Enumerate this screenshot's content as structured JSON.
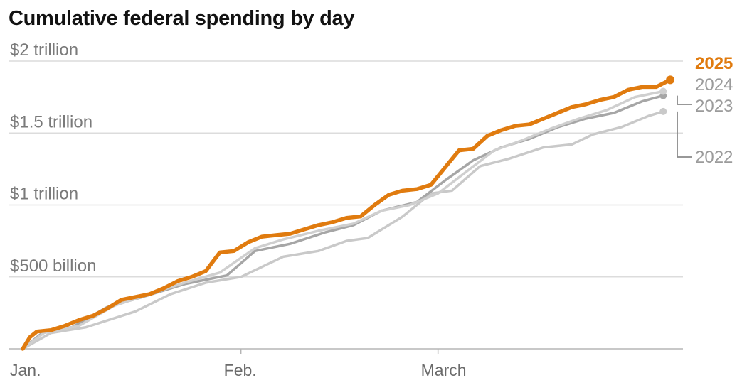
{
  "chart_data": {
    "type": "line",
    "title": "Cumulative federal spending by day",
    "xlabel": "",
    "ylabel": "",
    "x_ticks": [
      "Jan.",
      "Feb.",
      "March"
    ],
    "x_tick_days": [
      1,
      32,
      60
    ],
    "y_ticks": [
      {
        "value": 500,
        "label": "$500 billion"
      },
      {
        "value": 1000,
        "label": "$1 trillion"
      },
      {
        "value": 1500,
        "label": "$1.5 trillion"
      },
      {
        "value": 2000,
        "label": "$2 trillion"
      }
    ],
    "ylim": [
      0,
      2000
    ],
    "xlim": [
      1,
      94
    ],
    "grid": true,
    "legend_placement": "right, end of lines",
    "series": [
      {
        "name": "2022",
        "color": "#c9c9c9",
        "x": [
          1,
          5,
          10,
          17,
          22,
          27,
          32,
          38,
          43,
          47,
          50,
          55,
          59,
          62,
          66,
          70,
          75,
          79,
          82,
          86,
          90,
          92
        ],
        "y": [
          0,
          110,
          150,
          260,
          380,
          460,
          500,
          640,
          680,
          750,
          770,
          920,
          1080,
          1100,
          1270,
          1320,
          1400,
          1420,
          1490,
          1540,
          1620,
          1650
        ]
      },
      {
        "name": "2023",
        "color": "#a6a6a6",
        "x": [
          1,
          4,
          8,
          13,
          18,
          24,
          30,
          34,
          39,
          44,
          48,
          52,
          57,
          61,
          65,
          69,
          73,
          77,
          81,
          85,
          89,
          92
        ],
        "y": [
          0,
          120,
          150,
          290,
          360,
          450,
          510,
          680,
          730,
          810,
          860,
          960,
          1020,
          1170,
          1310,
          1400,
          1460,
          1540,
          1600,
          1640,
          1720,
          1760
        ]
      },
      {
        "name": "2024",
        "color": "#cfcfcf",
        "x": [
          1,
          4,
          9,
          14,
          19,
          24,
          29,
          34,
          38,
          43,
          48,
          52,
          56,
          60,
          64,
          68,
          72,
          76,
          80,
          84,
          88,
          92
        ],
        "y": [
          0,
          110,
          160,
          300,
          380,
          460,
          530,
          700,
          760,
          820,
          870,
          960,
          1000,
          1080,
          1230,
          1380,
          1450,
          1530,
          1600,
          1660,
          1750,
          1790
        ]
      },
      {
        "name": "2025",
        "color": "#e07b0f",
        "x": [
          1,
          2,
          3,
          5,
          7,
          9,
          11,
          13,
          15,
          17,
          19,
          21,
          23,
          25,
          27,
          29,
          31,
          33,
          35,
          37,
          39,
          41,
          43,
          45,
          47,
          49,
          51,
          53,
          55,
          57,
          59,
          61,
          63,
          65,
          67,
          69,
          71,
          73,
          75,
          77,
          79,
          81,
          83,
          85,
          87,
          89,
          91,
          93
        ],
        "y": [
          0,
          80,
          120,
          130,
          160,
          200,
          230,
          280,
          340,
          360,
          380,
          420,
          470,
          500,
          540,
          670,
          680,
          740,
          780,
          790,
          800,
          830,
          860,
          880,
          910,
          920,
          1000,
          1070,
          1100,
          1110,
          1140,
          1260,
          1380,
          1390,
          1480,
          1520,
          1550,
          1560,
          1600,
          1640,
          1680,
          1700,
          1730,
          1750,
          1800,
          1820,
          1820,
          1870
        ]
      }
    ],
    "legend": [
      {
        "label": "2025",
        "color": "#e07b0f",
        "bold": true
      },
      {
        "label": "2024",
        "color": "#9b9b9b",
        "bold": false
      },
      {
        "label": "2023",
        "color": "#9b9b9b",
        "bold": false
      },
      {
        "label": "2022",
        "color": "#9b9b9b",
        "bold": false
      }
    ]
  }
}
